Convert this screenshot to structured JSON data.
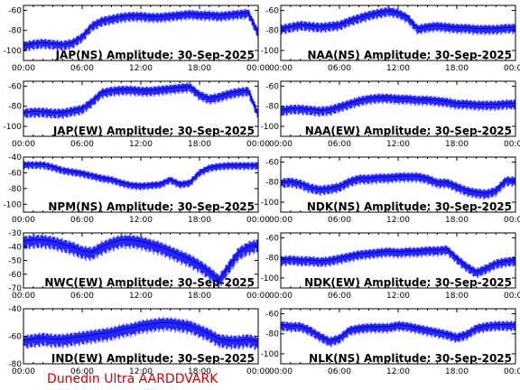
{
  "footer": "Dunedin Ultra AARDDVARK",
  "colors": {
    "trace": "#0000ff",
    "frame": "#000000",
    "footer": "#d40000",
    "background": "#ffffff"
  },
  "x_tick_labels": [
    "00:00",
    "06:00",
    "12:00",
    "18:00",
    "00:00"
  ],
  "chart_data": [
    {
      "type": "line",
      "title": "JAP(NS) Amplitude: 30-Sep-2025",
      "xlim_hours": [
        0,
        24
      ],
      "ylim": [
        -110,
        -55
      ],
      "yticks": [
        -60,
        -80,
        -100
      ],
      "series": [
        {
          "x": [
            0,
            1,
            2,
            3,
            4,
            5,
            6,
            7,
            8,
            9,
            10,
            11,
            12,
            13,
            14,
            15,
            16,
            17,
            18,
            19,
            20,
            21,
            22,
            23,
            24
          ],
          "values": [
            -95,
            -93,
            -92,
            -93,
            -94,
            -92,
            -86,
            -75,
            -70,
            -68,
            -66,
            -65,
            -65,
            -66,
            -66,
            -65,
            -64,
            -63,
            -64,
            -64,
            -65,
            -64,
            -63,
            -62,
            -82
          ]
        }
      ]
    },
    {
      "type": "line",
      "title": "NAA(NS) Amplitude: 30-Sep-2025",
      "xlim_hours": [
        0,
        24
      ],
      "ylim": [
        -110,
        -55
      ],
      "yticks": [
        -60,
        -80,
        -100
      ],
      "series": [
        {
          "x": [
            0,
            1,
            2,
            3,
            4,
            5,
            6,
            7,
            8,
            9,
            10,
            11,
            12,
            13,
            14,
            15,
            16,
            17,
            18,
            19,
            20,
            21,
            22,
            23,
            24
          ],
          "values": [
            -78,
            -76,
            -74,
            -75,
            -76,
            -75,
            -74,
            -70,
            -67,
            -64,
            -62,
            -60,
            -62,
            -67,
            -78,
            -76,
            -75,
            -76,
            -77,
            -77,
            -78,
            -78,
            -78,
            -77,
            -77
          ]
        }
      ]
    },
    {
      "type": "line",
      "title": "JAP(EW) Amplitude: 30-Sep-2025",
      "xlim_hours": [
        0,
        24
      ],
      "ylim": [
        -110,
        -55
      ],
      "yticks": [
        -60,
        -80,
        -100
      ],
      "series": [
        {
          "x": [
            0,
            1,
            2,
            3,
            4,
            5,
            6,
            7,
            8,
            9,
            10,
            11,
            12,
            13,
            14,
            15,
            16,
            17,
            18,
            19,
            20,
            21,
            22,
            23,
            24
          ],
          "values": [
            -86,
            -85,
            -85,
            -86,
            -86,
            -84,
            -82,
            -75,
            -66,
            -64,
            -63,
            -63,
            -64,
            -64,
            -63,
            -62,
            -61,
            -60,
            -68,
            -72,
            -70,
            -67,
            -65,
            -64,
            -88
          ]
        }
      ]
    },
    {
      "type": "line",
      "title": "NAA(EW) Amplitude: 30-Sep-2025",
      "xlim_hours": [
        0,
        24
      ],
      "ylim": [
        -110,
        -55
      ],
      "yticks": [
        -60,
        -80,
        -100
      ],
      "series": [
        {
          "x": [
            0,
            1,
            2,
            3,
            4,
            5,
            6,
            7,
            8,
            9,
            10,
            11,
            12,
            13,
            14,
            15,
            16,
            17,
            18,
            19,
            20,
            21,
            22,
            23,
            24
          ],
          "values": [
            -84,
            -82,
            -82,
            -83,
            -84,
            -83,
            -80,
            -77,
            -74,
            -72,
            -71,
            -71,
            -72,
            -72,
            -73,
            -73,
            -74,
            -75,
            -77,
            -77,
            -78,
            -78,
            -78,
            -77,
            -77
          ]
        }
      ]
    },
    {
      "type": "line",
      "title": "NPM(NS) Amplitude: 30-Sep-2025",
      "xlim_hours": [
        0,
        24
      ],
      "ylim": [
        -110,
        -40
      ],
      "yticks": [
        -40,
        -60,
        -80,
        -100
      ],
      "series": [
        {
          "x": [
            0,
            1,
            2,
            3,
            4,
            5,
            6,
            7,
            8,
            9,
            10,
            11,
            12,
            13,
            14,
            15,
            16,
            17,
            18,
            19,
            20,
            21,
            22,
            23,
            24
          ],
          "values": [
            -49,
            -49,
            -49,
            -52,
            -56,
            -58,
            -60,
            -63,
            -66,
            -68,
            -72,
            -75,
            -76,
            -75,
            -74,
            -68,
            -74,
            -72,
            -59,
            -53,
            -51,
            -50,
            -50,
            -50,
            -50
          ]
        }
      ]
    },
    {
      "type": "line",
      "title": "NDK(NS) Amplitude: 30-Sep-2025",
      "xlim_hours": [
        0,
        24
      ],
      "ylim": [
        -110,
        -55
      ],
      "yticks": [
        -60,
        -80,
        -100
      ],
      "series": [
        {
          "x": [
            0,
            1,
            2,
            3,
            4,
            5,
            6,
            7,
            8,
            9,
            10,
            11,
            12,
            13,
            14,
            15,
            16,
            17,
            18,
            19,
            20,
            21,
            22,
            23,
            24
          ],
          "values": [
            -80,
            -79,
            -81,
            -85,
            -87,
            -86,
            -84,
            -79,
            -76,
            -76,
            -75,
            -75,
            -74,
            -74,
            -74,
            -76,
            -80,
            -80,
            -84,
            -88,
            -90,
            -91,
            -88,
            -78,
            -78
          ]
        }
      ]
    },
    {
      "type": "line",
      "title": "NWC(EW) Amplitude: 30-Sep-2025",
      "xlim_hours": [
        0,
        24
      ],
      "ylim": [
        -70,
        -30
      ],
      "yticks": [
        -30,
        -40,
        -50,
        -60,
        -70
      ],
      "series": [
        {
          "x": [
            0,
            1,
            2,
            3,
            4,
            5,
            6,
            7,
            8,
            9,
            10,
            11,
            12,
            13,
            14,
            15,
            16,
            17,
            18,
            19,
            20,
            21,
            22,
            23,
            24
          ],
          "values": [
            -36,
            -35,
            -35,
            -36,
            -38,
            -40,
            -43,
            -44,
            -40,
            -37,
            -35,
            -35,
            -36,
            -38,
            -40,
            -43,
            -46,
            -49,
            -53,
            -58,
            -64,
            -54,
            -44,
            -40,
            -38
          ]
        }
      ]
    },
    {
      "type": "line",
      "title": "NDK(EW) Amplitude: 30-Sep-2025",
      "xlim_hours": [
        0,
        24
      ],
      "ylim": [
        -110,
        -55
      ],
      "yticks": [
        -60,
        -80,
        -100
      ],
      "series": [
        {
          "x": [
            0,
            1,
            2,
            3,
            4,
            5,
            6,
            7,
            8,
            9,
            10,
            11,
            12,
            13,
            14,
            15,
            16,
            17,
            18,
            19,
            20,
            21,
            22,
            23,
            24
          ],
          "values": [
            -82,
            -81,
            -82,
            -82,
            -83,
            -82,
            -80,
            -78,
            -76,
            -75,
            -74,
            -73,
            -74,
            -73,
            -73,
            -72,
            -72,
            -71,
            -80,
            -88,
            -94,
            -90,
            -85,
            -83,
            -82
          ]
        }
      ]
    },
    {
      "type": "line",
      "title": "IND(EW) Amplitude: 30-Sep-2025",
      "xlim_hours": [
        0,
        24
      ],
      "ylim": [
        -80,
        -40
      ],
      "yticks": [
        -40,
        -60,
        -80
      ],
      "series": [
        {
          "x": [
            0,
            1,
            2,
            3,
            4,
            5,
            6,
            7,
            8,
            9,
            10,
            11,
            12,
            13,
            14,
            15,
            16,
            17,
            18,
            19,
            20,
            21,
            22,
            23,
            24
          ],
          "values": [
            -63,
            -62,
            -61,
            -62,
            -62,
            -61,
            -60,
            -59,
            -58,
            -57,
            -55,
            -54,
            -52,
            -51,
            -50,
            -50,
            -51,
            -52,
            -55,
            -58,
            -62,
            -63,
            -63,
            -62,
            -64
          ]
        }
      ]
    },
    {
      "type": "line",
      "title": "NLK(NS) Amplitude: 30-Sep-2025",
      "xlim_hours": [
        0,
        24
      ],
      "ylim": [
        -110,
        -55
      ],
      "yticks": [
        -60,
        -80,
        -100
      ],
      "series": [
        {
          "x": [
            0,
            1,
            2,
            3,
            4,
            5,
            6,
            7,
            8,
            9,
            10,
            11,
            12,
            13,
            14,
            15,
            16,
            17,
            18,
            19,
            20,
            21,
            22,
            23,
            24
          ],
          "values": [
            -71,
            -72,
            -72,
            -76,
            -82,
            -87,
            -84,
            -76,
            -74,
            -73,
            -73,
            -73,
            -71,
            -72,
            -74,
            -76,
            -78,
            -80,
            -83,
            -80,
            -74,
            -72,
            -71,
            -71,
            -71
          ]
        }
      ]
    }
  ]
}
